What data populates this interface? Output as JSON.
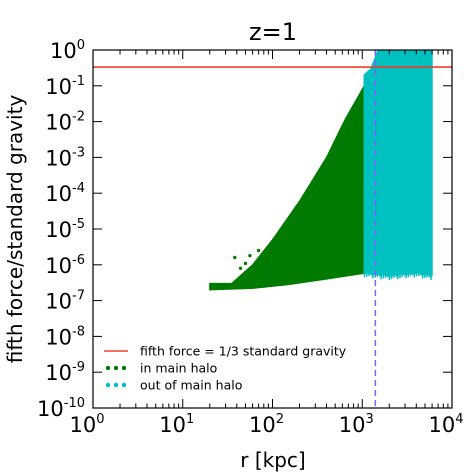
{
  "chart_data": {
    "type": "scatter",
    "title": "z=1",
    "xlabel": "r [kpc]",
    "ylabel": "fifth force/standard gravity",
    "xscale": "log",
    "yscale": "log",
    "xlim": [
      1,
      10000
    ],
    "ylim": [
      1e-10,
      1
    ],
    "x_ticks": [
      {
        "value": 1,
        "base": "10",
        "exp": "0"
      },
      {
        "value": 10,
        "base": "10",
        "exp": "1"
      },
      {
        "value": 100,
        "base": "10",
        "exp": "2"
      },
      {
        "value": 1000,
        "base": "10",
        "exp": "3"
      },
      {
        "value": 10000,
        "base": "10",
        "exp": "4"
      }
    ],
    "y_ticks": [
      {
        "value": 1,
        "base": "10",
        "exp": "0"
      },
      {
        "value": 0.1,
        "base": "10",
        "exp": "-1"
      },
      {
        "value": 0.01,
        "base": "10",
        "exp": "-2"
      },
      {
        "value": 0.001,
        "base": "10",
        "exp": "-3"
      },
      {
        "value": 0.0001,
        "base": "10",
        "exp": "-4"
      },
      {
        "value": 1e-05,
        "base": "10",
        "exp": "-5"
      },
      {
        "value": 1e-06,
        "base": "10",
        "exp": "-6"
      },
      {
        "value": 1e-07,
        "base": "10",
        "exp": "-7"
      },
      {
        "value": 1e-08,
        "base": "10",
        "exp": "-8"
      },
      {
        "value": 1e-09,
        "base": "10",
        "exp": "-9"
      },
      {
        "value": 1e-10,
        "base": "10",
        "exp": "-10"
      }
    ],
    "reference_line": {
      "name": "fifth force = 1/3 standard gravity",
      "y": 0.3333,
      "color": "#e8402a"
    },
    "vertical_line": {
      "x": 1400,
      "color": "#8060ff",
      "style": "dashed"
    },
    "series": [
      {
        "name": "in main halo",
        "color": "#007a00",
        "r_range": [
          20,
          1150
        ],
        "lower_edge": [
          {
            "x": 20,
            "y": 2e-07
          },
          {
            "x": 60,
            "y": 2.2e-07
          },
          {
            "x": 150,
            "y": 2.8e-07
          },
          {
            "x": 400,
            "y": 4e-07
          },
          {
            "x": 1150,
            "y": 6e-07
          }
        ],
        "upper_edge": [
          {
            "x": 35,
            "y": 3e-07
          },
          {
            "x": 60,
            "y": 1e-06
          },
          {
            "x": 100,
            "y": 5e-06
          },
          {
            "x": 200,
            "y": 6e-05
          },
          {
            "x": 400,
            "y": 0.001
          },
          {
            "x": 650,
            "y": 0.012
          },
          {
            "x": 900,
            "y": 0.05
          },
          {
            "x": 1150,
            "y": 0.15
          }
        ],
        "scattered_points": [
          {
            "x": 38,
            "y": 1.6e-06
          },
          {
            "x": 44,
            "y": 8e-07
          },
          {
            "x": 50,
            "y": 1.1e-06
          },
          {
            "x": 28,
            "y": 2.4e-07
          },
          {
            "x": 32,
            "y": 2.6e-07
          },
          {
            "x": 56,
            "y": 1.8e-06
          },
          {
            "x": 70,
            "y": 2.5e-06
          },
          {
            "x": 62,
            "y": 5e-07
          }
        ]
      },
      {
        "name": "out of main halo",
        "color": "#00c0c0",
        "r_range": [
          1050,
          6000
        ],
        "lower_edge": [
          {
            "x": 1050,
            "y": 6e-07
          },
          {
            "x": 2000,
            "y": 5e-07
          },
          {
            "x": 4000,
            "y": 6e-07
          },
          {
            "x": 6000,
            "y": 5e-07
          }
        ],
        "upper_edge": [
          {
            "x": 1050,
            "y": 0.2
          },
          {
            "x": 1250,
            "y": 0.3
          },
          {
            "x": 1500,
            "y": 1
          },
          {
            "x": 6000,
            "y": 1
          }
        ]
      }
    ],
    "legend": {
      "position": "lower-left",
      "entries": [
        {
          "label": "fifth force = 1/3 standard gravity",
          "marker": "line",
          "color": "#e8402a"
        },
        {
          "label": "in main halo",
          "marker": "dots",
          "color": "#007a00"
        },
        {
          "label": "out of main halo",
          "marker": "dots",
          "color": "#00c0c0"
        }
      ]
    },
    "grid": false
  }
}
